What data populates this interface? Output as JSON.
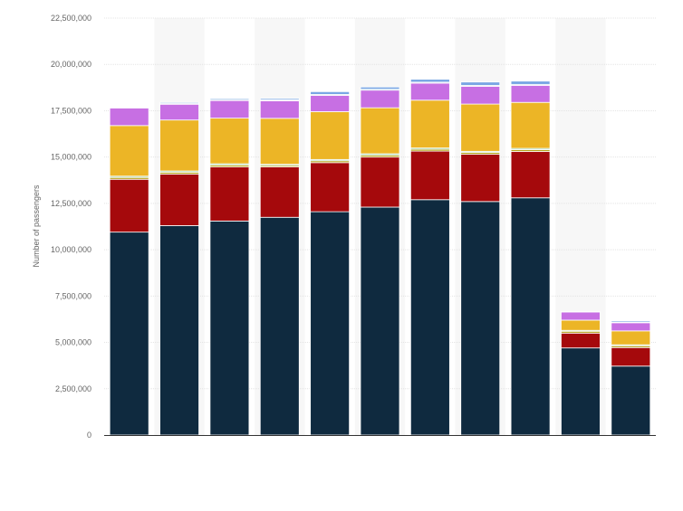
{
  "chart_data": {
    "type": "bar",
    "stacked": true,
    "title": "",
    "xlabel": "",
    "ylabel": "Number of passengers",
    "ylim": [
      0,
      22500000
    ],
    "yticks": [
      0,
      2500000,
      5000000,
      7500000,
      10000000,
      12500000,
      15000000,
      17500000,
      20000000,
      22500000
    ],
    "ytick_labels": [
      "0",
      "2,500,000",
      "5,000,000",
      "7,500,000",
      "10,000,000",
      "12,500,000",
      "15,000,000",
      "17,500,000",
      "20,000,000",
      "22,500,000"
    ],
    "categories": [
      "",
      "",
      "",
      "",
      "",
      "",
      "",
      "",
      "",
      "",
      ""
    ],
    "grid": true,
    "legend": "none",
    "series": [
      {
        "color": "#0f2a3f",
        "values": [
          10950000,
          11300000,
          11550000,
          11750000,
          12050000,
          12300000,
          12700000,
          12600000,
          12800000,
          4700000,
          3720000
        ]
      },
      {
        "color": "#a5090c",
        "values": [
          2850000,
          2780000,
          2920000,
          2720000,
          2650000,
          2700000,
          2620000,
          2550000,
          2500000,
          800000,
          1000000
        ]
      },
      {
        "color": "#b6a31b",
        "values": [
          100000,
          100000,
          100000,
          80000,
          100000,
          100000,
          100000,
          100000,
          100000,
          100000,
          100000
        ]
      },
      {
        "color": "#9ad1a2",
        "values": [
          70000,
          70000,
          70000,
          60000,
          70000,
          80000,
          70000,
          60000,
          70000,
          50000,
          50000
        ]
      },
      {
        "color": "#ecb526",
        "values": [
          2730000,
          2750000,
          2460000,
          2480000,
          2580000,
          2480000,
          2580000,
          2550000,
          2480000,
          550000,
          750000
        ]
      },
      {
        "color": "#c76fe3",
        "values": [
          950000,
          850000,
          950000,
          950000,
          880000,
          950000,
          920000,
          960000,
          920000,
          440000,
          440000
        ]
      },
      {
        "color": "#8faed8",
        "values": [
          20000,
          50000,
          50000,
          50000,
          50000,
          50000,
          50000,
          50000,
          50000,
          20000,
          20000
        ]
      },
      {
        "color": "#7aa7e4",
        "values": [
          0,
          50000,
          60000,
          70000,
          150000,
          120000,
          160000,
          180000,
          180000,
          0,
          70000
        ]
      }
    ]
  }
}
